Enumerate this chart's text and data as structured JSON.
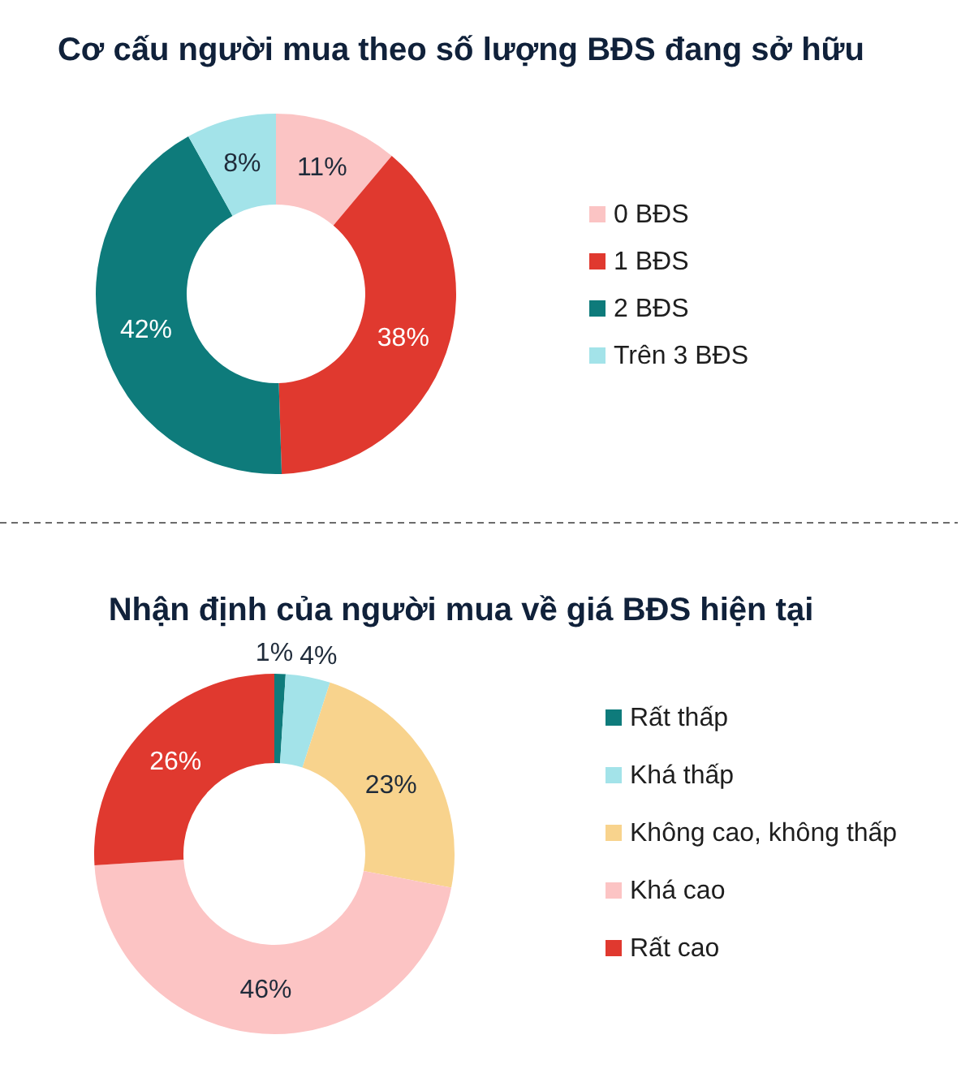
{
  "chart_data": [
    {
      "type": "donut",
      "title": "Cơ cấu người mua theo số lượng BĐS đang sở hữu",
      "categories": [
        "0 BĐS",
        "1 BĐS",
        "2 BĐS",
        "Trên 3 BĐS"
      ],
      "values": [
        11,
        38,
        42,
        8
      ],
      "colors": [
        "#fbc4c4",
        "#e0392f",
        "#0e7b7b",
        "#a3e3e9"
      ],
      "value_labels": [
        "11%",
        "38%",
        "42%",
        "8%"
      ],
      "legend": "right"
    },
    {
      "type": "donut",
      "title": "Nhận định của người mua về giá BĐS hiện tại",
      "categories": [
        "Rất thấp",
        "Khá thấp",
        "Không cao, không thấp",
        "Khá cao",
        "Rất cao"
      ],
      "values": [
        1,
        4,
        23,
        46,
        26
      ],
      "colors": [
        "#0e7b7b",
        "#a3e3e9",
        "#f8d38d",
        "#fcc4c4",
        "#e0392f"
      ],
      "value_labels": [
        "1%",
        "4%",
        "23%",
        "46%",
        "26%"
      ],
      "legend": "right"
    }
  ]
}
